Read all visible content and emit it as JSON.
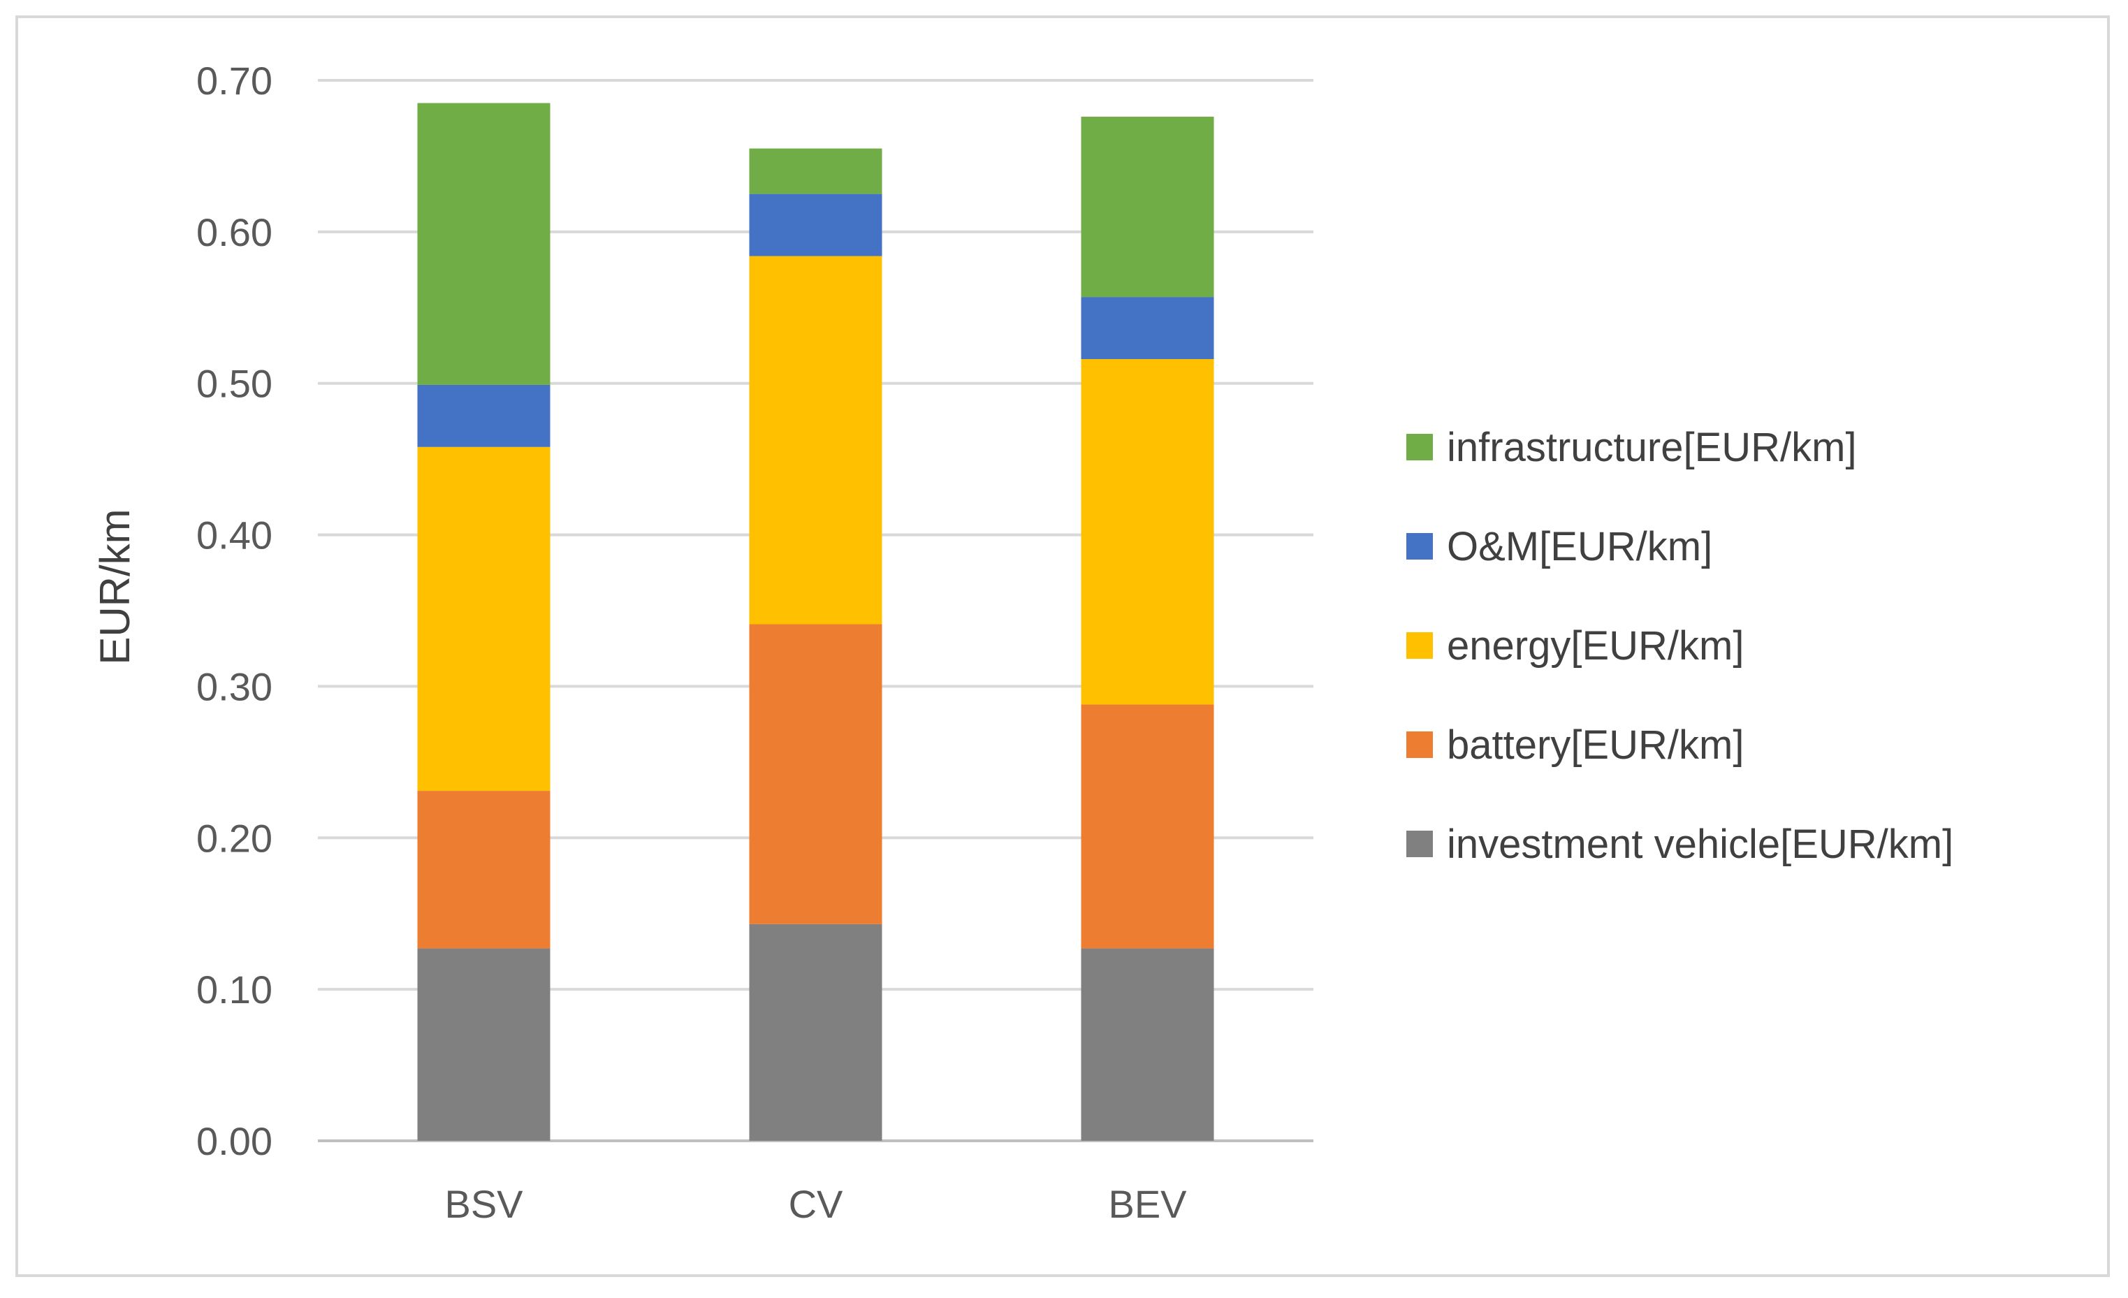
{
  "chart_data": {
    "type": "bar",
    "stacked": true,
    "title": "",
    "xlabel": "",
    "ylabel": "EUR/km",
    "ylim": [
      0,
      0.7
    ],
    "yticks": [
      "0.00",
      "0.10",
      "0.20",
      "0.30",
      "0.40",
      "0.50",
      "0.60",
      "0.70"
    ],
    "grid": true,
    "legend_position": "right",
    "categories": [
      "BSV",
      "CV",
      "BEV"
    ],
    "series": [
      {
        "name": "investment vehicle[EUR/km]",
        "color": "#808080",
        "values": [
          0.127,
          0.143,
          0.127
        ]
      },
      {
        "name": "battery[EUR/km]",
        "color": "#ED7D31",
        "values": [
          0.104,
          0.198,
          0.161
        ]
      },
      {
        "name": "energy[EUR/km]",
        "color": "#FFC000",
        "values": [
          0.227,
          0.243,
          0.228
        ]
      },
      {
        "name": "O&M[EUR/km]",
        "color": "#4472C4",
        "values": [
          0.041,
          0.041,
          0.041
        ]
      },
      {
        "name": "infrastructure[EUR/km]",
        "color": "#70AD47",
        "values": [
          0.186,
          0.03,
          0.119
        ]
      }
    ]
  }
}
